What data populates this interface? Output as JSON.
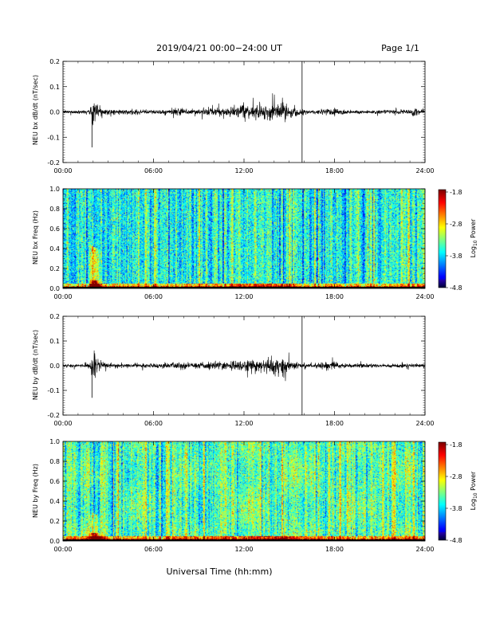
{
  "header": {
    "title": "2019/04/21  00:00−24:00 UT",
    "page": "Page 1/1"
  },
  "x_axis": {
    "label": "Universal Time (hh:mm)",
    "range": [
      0,
      24
    ],
    "ticks": [
      0,
      6,
      12,
      18,
      24
    ],
    "tick_labels": [
      "00:00",
      "06:00",
      "12:00",
      "18:00",
      "24:00"
    ]
  },
  "colorbar": {
    "label": "Log10 Power",
    "label_main": "Log",
    "label_sub": "10",
    "label_rest": " Power",
    "range": [
      -4.8,
      -1.8
    ],
    "ticks": [
      -1.8,
      -2.8,
      -3.8,
      -4.8
    ],
    "tick_labels": [
      "-1.8",
      "-2.8",
      "-3.8",
      "-4.8"
    ]
  },
  "chart_data": [
    {
      "type": "line",
      "ylabel": "NEU bx dB/dt (nT/sec)",
      "ylim": [
        -0.2,
        0.2
      ],
      "yticks": [
        -0.2,
        -0.1,
        0.0,
        0.1,
        0.2
      ],
      "ytick_labels": [
        "-0.2",
        "-0.1",
        "0.0",
        "0.1",
        "0.2"
      ],
      "spike_time": 15.85,
      "envelope": {
        "x": [
          0,
          1.5,
          1.85,
          1.95,
          2.1,
          2.4,
          2.8,
          3.5,
          5.0,
          6.5,
          7.5,
          8.5,
          10.0,
          11.0,
          12.0,
          13.0,
          14.0,
          14.8,
          15.2,
          15.6,
          16.0,
          16.8,
          17.5,
          18.0,
          18.5,
          19.0,
          20.0,
          21.0,
          22.0,
          23.0,
          23.4,
          23.6,
          24.0
        ],
        "amp": [
          0.006,
          0.007,
          0.015,
          0.07,
          0.05,
          0.025,
          0.012,
          0.009,
          0.008,
          0.008,
          0.012,
          0.012,
          0.014,
          0.018,
          0.022,
          0.025,
          0.03,
          0.032,
          0.02,
          0.012,
          0.008,
          0.008,
          0.014,
          0.016,
          0.01,
          0.007,
          0.007,
          0.007,
          0.007,
          0.008,
          0.02,
          0.008,
          0.007
        ]
      }
    },
    {
      "type": "heatmap",
      "ylabel": "NEU bx Freq (Hz)",
      "ylim": [
        0.0,
        1.0
      ],
      "yticks": [
        0.0,
        0.2,
        0.4,
        0.6,
        0.8,
        1.0
      ],
      "ytick_labels": [
        "0.0",
        "0.2",
        "0.4",
        "0.6",
        "0.8",
        "1.0"
      ],
      "zlim": [
        -4.8,
        -1.8
      ],
      "base_log_power": -3.6
    },
    {
      "type": "line",
      "ylabel": "NEU by dB/dt (nT/sec)",
      "ylim": [
        -0.2,
        0.2
      ],
      "yticks": [
        -0.2,
        -0.1,
        0.0,
        0.1,
        0.2
      ],
      "ytick_labels": [
        "-0.2",
        "-0.1",
        "0.0",
        "0.1",
        "0.2"
      ],
      "spike_time": 15.85,
      "envelope": {
        "x": [
          0,
          1.5,
          1.85,
          1.95,
          2.1,
          2.4,
          2.8,
          3.5,
          5.0,
          6.5,
          7.5,
          8.5,
          10.0,
          11.0,
          12.0,
          13.0,
          14.0,
          14.8,
          15.2,
          15.6,
          16.0,
          16.8,
          17.5,
          18.0,
          18.5,
          19.0,
          20.0,
          21.0,
          22.0,
          23.0,
          23.4,
          23.6,
          24.0
        ],
        "amp": [
          0.006,
          0.007,
          0.015,
          0.065,
          0.045,
          0.02,
          0.01,
          0.008,
          0.008,
          0.008,
          0.012,
          0.012,
          0.014,
          0.018,
          0.022,
          0.026,
          0.032,
          0.035,
          0.02,
          0.012,
          0.008,
          0.008,
          0.015,
          0.017,
          0.01,
          0.007,
          0.007,
          0.007,
          0.007,
          0.008,
          0.012,
          0.008,
          0.007
        ]
      }
    },
    {
      "type": "heatmap",
      "ylabel": "NEU by Freq (Hz)",
      "ylim": [
        0.0,
        1.0
      ],
      "yticks": [
        0.0,
        0.2,
        0.4,
        0.6,
        0.8,
        1.0
      ],
      "ytick_labels": [
        "0.0",
        "0.2",
        "0.4",
        "0.6",
        "0.8",
        "1.0"
      ],
      "zlim": [
        -4.8,
        -1.8
      ],
      "base_log_power": -3.4
    }
  ]
}
